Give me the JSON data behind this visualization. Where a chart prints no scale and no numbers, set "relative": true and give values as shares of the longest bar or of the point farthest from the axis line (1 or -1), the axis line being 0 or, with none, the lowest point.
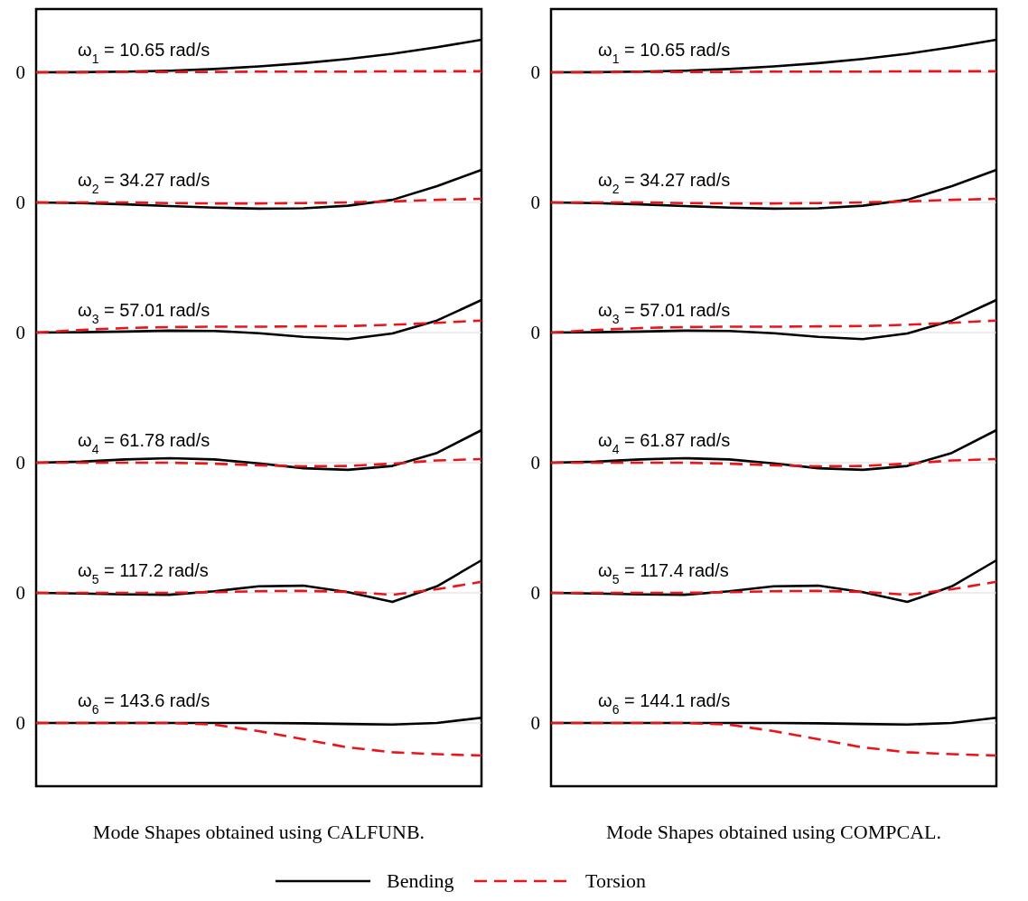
{
  "chart_data": [
    {
      "type": "line",
      "relative": true,
      "title": "ω$_{1}$ = 10.65 rad/s",
      "categories": [
        null,
        null,
        null,
        null,
        null,
        null,
        null,
        null,
        null,
        null,
        null
      ],
      "annotations": [
        "0"
      ],
      "series": [
        {
          "color": "#000000",
          "values": [
            0,
            0.003,
            0.02,
            0.05,
            0.1,
            0.18,
            0.28,
            0.41,
            0.57,
            0.77,
            1
          ]
        },
        {
          "color": "#e8151b",
          "line_style": "dashed",
          "values": [
            0,
            0,
            0.01,
            0.01,
            0.01,
            0.02,
            0.02,
            0.02,
            0.03,
            0.03,
            0.03
          ]
        }
      ]
    },
    {
      "type": "line",
      "relative": true,
      "title": "ω$_{2}$ = 34.27 rad/s",
      "categories": [
        null,
        null,
        null,
        null,
        null,
        null,
        null,
        null,
        null,
        null,
        null
      ],
      "annotations": [
        "0"
      ],
      "series": [
        {
          "color": "#000000",
          "values": [
            0,
            -0.02,
            -0.06,
            -0.11,
            -0.16,
            -0.19,
            -0.18,
            -0.1,
            0.08,
            0.5,
            1
          ]
        },
        {
          "color": "#e8151b",
          "line_style": "dashed",
          "values": [
            0,
            0,
            0,
            -0.02,
            -0.03,
            -0.03,
            -0.02,
            0,
            0.03,
            0.08,
            0.11
          ]
        }
      ]
    },
    {
      "type": "line",
      "relative": true,
      "title": "ω$_{3}$ = 57.01 rad/s",
      "categories": [
        null,
        null,
        null,
        null,
        null,
        null,
        null,
        null,
        null,
        null,
        null
      ],
      "annotations": [
        "0"
      ],
      "series": [
        {
          "color": "#000000",
          "values": [
            0,
            0.01,
            0.03,
            0.06,
            0.05,
            -0.02,
            -0.13,
            -0.2,
            -0.03,
            0.37,
            1
          ]
        },
        {
          "color": "#e8151b",
          "line_style": "dashed",
          "values": [
            0,
            0.08,
            0.14,
            0.17,
            0.18,
            0.18,
            0.19,
            0.2,
            0.24,
            0.3,
            0.37
          ]
        }
      ]
    },
    {
      "type": "line",
      "relative": true,
      "title": "ω$_{4}$ = 61.78 rad/s",
      "categories": [
        null,
        null,
        null,
        null,
        null,
        null,
        null,
        null,
        null,
        null,
        null
      ],
      "annotations": [
        "0"
      ],
      "series": [
        {
          "color": "#000000",
          "values": [
            0,
            0.03,
            0.1,
            0.14,
            0.1,
            -0.02,
            -0.17,
            -0.22,
            -0.1,
            0.3,
            1
          ]
        },
        {
          "color": "#e8151b",
          "line_style": "dashed",
          "values": [
            0,
            0,
            0,
            0,
            -0.03,
            -0.08,
            -0.11,
            -0.1,
            -0.03,
            0.07,
            0.11
          ]
        }
      ]
    },
    {
      "type": "line",
      "relative": true,
      "title": "ω$_{5}$ = 117.2 rad/s",
      "categories": [
        null,
        null,
        null,
        null,
        null,
        null,
        null,
        null,
        null,
        null,
        null
      ],
      "annotations": [
        "0"
      ],
      "series": [
        {
          "color": "#000000",
          "values": [
            0,
            -0.02,
            -0.05,
            -0.06,
            0.05,
            0.2,
            0.22,
            0.02,
            -0.28,
            0.2,
            1
          ]
        },
        {
          "color": "#e8151b",
          "line_style": "dashed",
          "values": [
            0,
            0,
            0,
            0,
            0.02,
            0.05,
            0.06,
            0.03,
            -0.06,
            0.11,
            0.34
          ]
        }
      ]
    },
    {
      "type": "line",
      "relative": true,
      "title": "ω$_{6}$ = 143.6 rad/s",
      "xlabel": "Mode Shapes obtained using CALFUNB.",
      "categories": [
        null,
        null,
        null,
        null,
        null,
        null,
        null,
        null,
        null,
        null,
        null
      ],
      "annotations": [
        "0"
      ],
      "series": [
        {
          "color": "#000000",
          "values": [
            0,
            0,
            0,
            0,
            0,
            0,
            -0.01,
            -0.03,
            -0.05,
            0,
            0.16
          ]
        },
        {
          "color": "#e8151b",
          "line_style": "dashed",
          "values": [
            0,
            0,
            0,
            0,
            -0.05,
            -0.25,
            -0.5,
            -0.75,
            -0.9,
            -0.96,
            -1
          ]
        }
      ]
    },
    {
      "type": "line",
      "relative": true,
      "title": "ω$_{1}$ = 10.65 rad/s",
      "categories": [
        null,
        null,
        null,
        null,
        null,
        null,
        null,
        null,
        null,
        null,
        null
      ],
      "annotations": [
        "0"
      ],
      "series": [
        {
          "color": "#000000",
          "values": [
            0,
            0.003,
            0.02,
            0.05,
            0.1,
            0.18,
            0.28,
            0.41,
            0.57,
            0.77,
            1
          ]
        },
        {
          "color": "#e8151b",
          "line_style": "dashed",
          "values": [
            0,
            0,
            0.01,
            0.01,
            0.01,
            0.02,
            0.02,
            0.02,
            0.03,
            0.03,
            0.03
          ]
        }
      ]
    },
    {
      "type": "line",
      "relative": true,
      "title": "ω$_{2}$ = 34.27 rad/s",
      "categories": [
        null,
        null,
        null,
        null,
        null,
        null,
        null,
        null,
        null,
        null,
        null
      ],
      "annotations": [
        "0"
      ],
      "series": [
        {
          "color": "#000000",
          "values": [
            0,
            -0.02,
            -0.06,
            -0.11,
            -0.16,
            -0.19,
            -0.18,
            -0.1,
            0.08,
            0.5,
            1
          ]
        },
        {
          "color": "#e8151b",
          "line_style": "dashed",
          "values": [
            0,
            0,
            0,
            -0.02,
            -0.03,
            -0.03,
            -0.02,
            0,
            0.03,
            0.08,
            0.11
          ]
        }
      ]
    },
    {
      "type": "line",
      "relative": true,
      "title": "ω$_{3}$ = 57.01 rad/s",
      "categories": [
        null,
        null,
        null,
        null,
        null,
        null,
        null,
        null,
        null,
        null,
        null
      ],
      "annotations": [
        "0"
      ],
      "series": [
        {
          "color": "#000000",
          "values": [
            0,
            0.01,
            0.03,
            0.06,
            0.05,
            -0.02,
            -0.13,
            -0.2,
            -0.03,
            0.37,
            1
          ]
        },
        {
          "color": "#e8151b",
          "line_style": "dashed",
          "values": [
            0,
            0.08,
            0.14,
            0.17,
            0.18,
            0.18,
            0.19,
            0.2,
            0.24,
            0.3,
            0.37
          ]
        }
      ]
    },
    {
      "type": "line",
      "relative": true,
      "title": "ω$_{4}$ = 61.87 rad/s",
      "categories": [
        null,
        null,
        null,
        null,
        null,
        null,
        null,
        null,
        null,
        null,
        null
      ],
      "annotations": [
        "0"
      ],
      "series": [
        {
          "color": "#000000",
          "values": [
            0,
            0.03,
            0.1,
            0.14,
            0.1,
            -0.02,
            -0.17,
            -0.22,
            -0.1,
            0.3,
            1
          ]
        },
        {
          "color": "#e8151b",
          "line_style": "dashed",
          "values": [
            0,
            0,
            0,
            0,
            -0.03,
            -0.08,
            -0.11,
            -0.1,
            -0.03,
            0.07,
            0.11
          ]
        }
      ]
    },
    {
      "type": "line",
      "relative": true,
      "title": "ω$_{5}$ = 117.4 rad/s",
      "categories": [
        null,
        null,
        null,
        null,
        null,
        null,
        null,
        null,
        null,
        null,
        null
      ],
      "annotations": [
        "0"
      ],
      "series": [
        {
          "color": "#000000",
          "values": [
            0,
            -0.02,
            -0.05,
            -0.06,
            0.05,
            0.2,
            0.22,
            0.02,
            -0.28,
            0.2,
            1
          ]
        },
        {
          "color": "#e8151b",
          "line_style": "dashed",
          "values": [
            0,
            0,
            0,
            0,
            0.02,
            0.05,
            0.06,
            0.03,
            -0.06,
            0.11,
            0.34
          ]
        }
      ]
    },
    {
      "type": "line",
      "relative": true,
      "title": "ω$_{6}$ = 144.1 rad/s",
      "xlabel": "Mode Shapes obtained using COMPCAL.",
      "legend": "bottom",
      "categories": [
        null,
        null,
        null,
        null,
        null,
        null,
        null,
        null,
        null,
        null,
        null
      ],
      "annotations": [
        "0"
      ],
      "series": [
        {
          "name": "Bending",
          "color": "#000000",
          "values": [
            0,
            0,
            0,
            0,
            0,
            0,
            -0.01,
            -0.03,
            -0.05,
            0,
            0.16
          ]
        },
        {
          "name": "Torsion",
          "color": "#e8151b",
          "line_style": "dashed",
          "values": [
            0,
            0,
            0,
            0,
            -0.05,
            -0.25,
            -0.5,
            -0.75,
            -0.9,
            -0.96,
            -1
          ]
        }
      ]
    }
  ]
}
